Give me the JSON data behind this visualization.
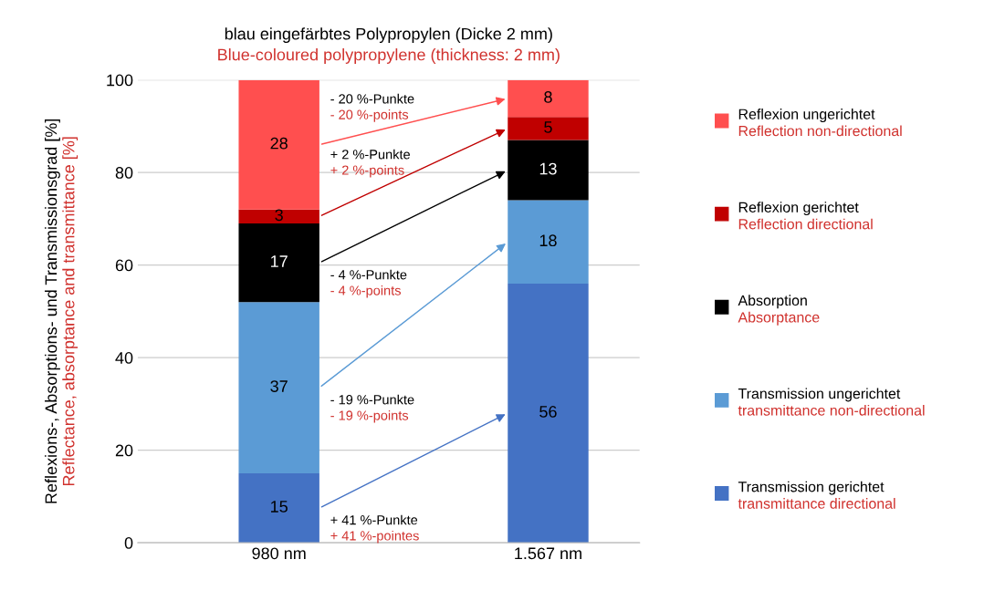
{
  "chart_data": {
    "type": "bar",
    "stacked": true,
    "title": "blau eingefärbtes Polypropylen (Dicke 2 mm)",
    "subtitle": "Blue-coloured polypropylene (thickness: 2 mm)",
    "ylabel": "Reflexions-, Absorptions- und Transmissionsgrad [%]\nReflectance, absorptance and transmittance [%]",
    "categories": [
      "980 nm",
      "1.567 nm"
    ],
    "series": [
      {
        "name": "Transmission gerichtet\ntransmittance directional",
        "color": "#4472c4",
        "values": [
          15,
          56
        ]
      },
      {
        "name": "Transmission ungerichtet\ntransmittance non-directional",
        "color": "#5b9bd5",
        "values": [
          37,
          18
        ]
      },
      {
        "name": "Absorption\nAbsorptance",
        "color": "#000000",
        "values": [
          17,
          13
        ]
      },
      {
        "name": "Reflexion gerichtet\nReflection directional",
        "color": "#c00000",
        "values": [
          3,
          5
        ]
      },
      {
        "name": "Reflexion ungerichtet\nReflection non-directional",
        "color": "#ff4f4f",
        "values": [
          28,
          8
        ]
      }
    ],
    "ylim": [
      0,
      100
    ],
    "yticks": [
      0,
      20,
      40,
      60,
      80,
      100
    ],
    "grid": "y",
    "legend": "right",
    "data_labels": true,
    "annotations": [
      "+ 41 %-Punkte\n+ 41 %-pointes",
      "- 19 %-Punkte\n- 19 %-points",
      "- 4 %-Punkte\n- 4 %-points",
      "+ 2 %-Punkte\n+ 2 %-points",
      "- 20 %-Punkte\n- 20 %-points"
    ]
  }
}
